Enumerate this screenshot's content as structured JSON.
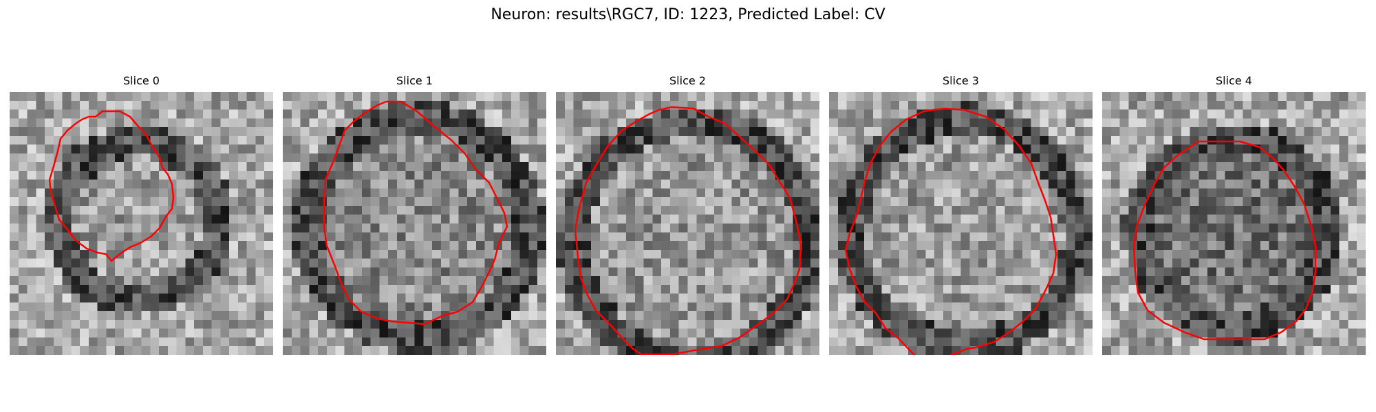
{
  "figure": {
    "title": "Neuron: results\\RGC7, ID: 1223, Predicted Label: CV",
    "contour_color": "#ff0000",
    "colormap": "grayscale",
    "panels": [
      {
        "title": "Slice 0"
      },
      {
        "title": "Slice 1"
      },
      {
        "title": "Slice 2"
      },
      {
        "title": "Slice 3"
      },
      {
        "title": "Slice 4"
      }
    ]
  }
}
